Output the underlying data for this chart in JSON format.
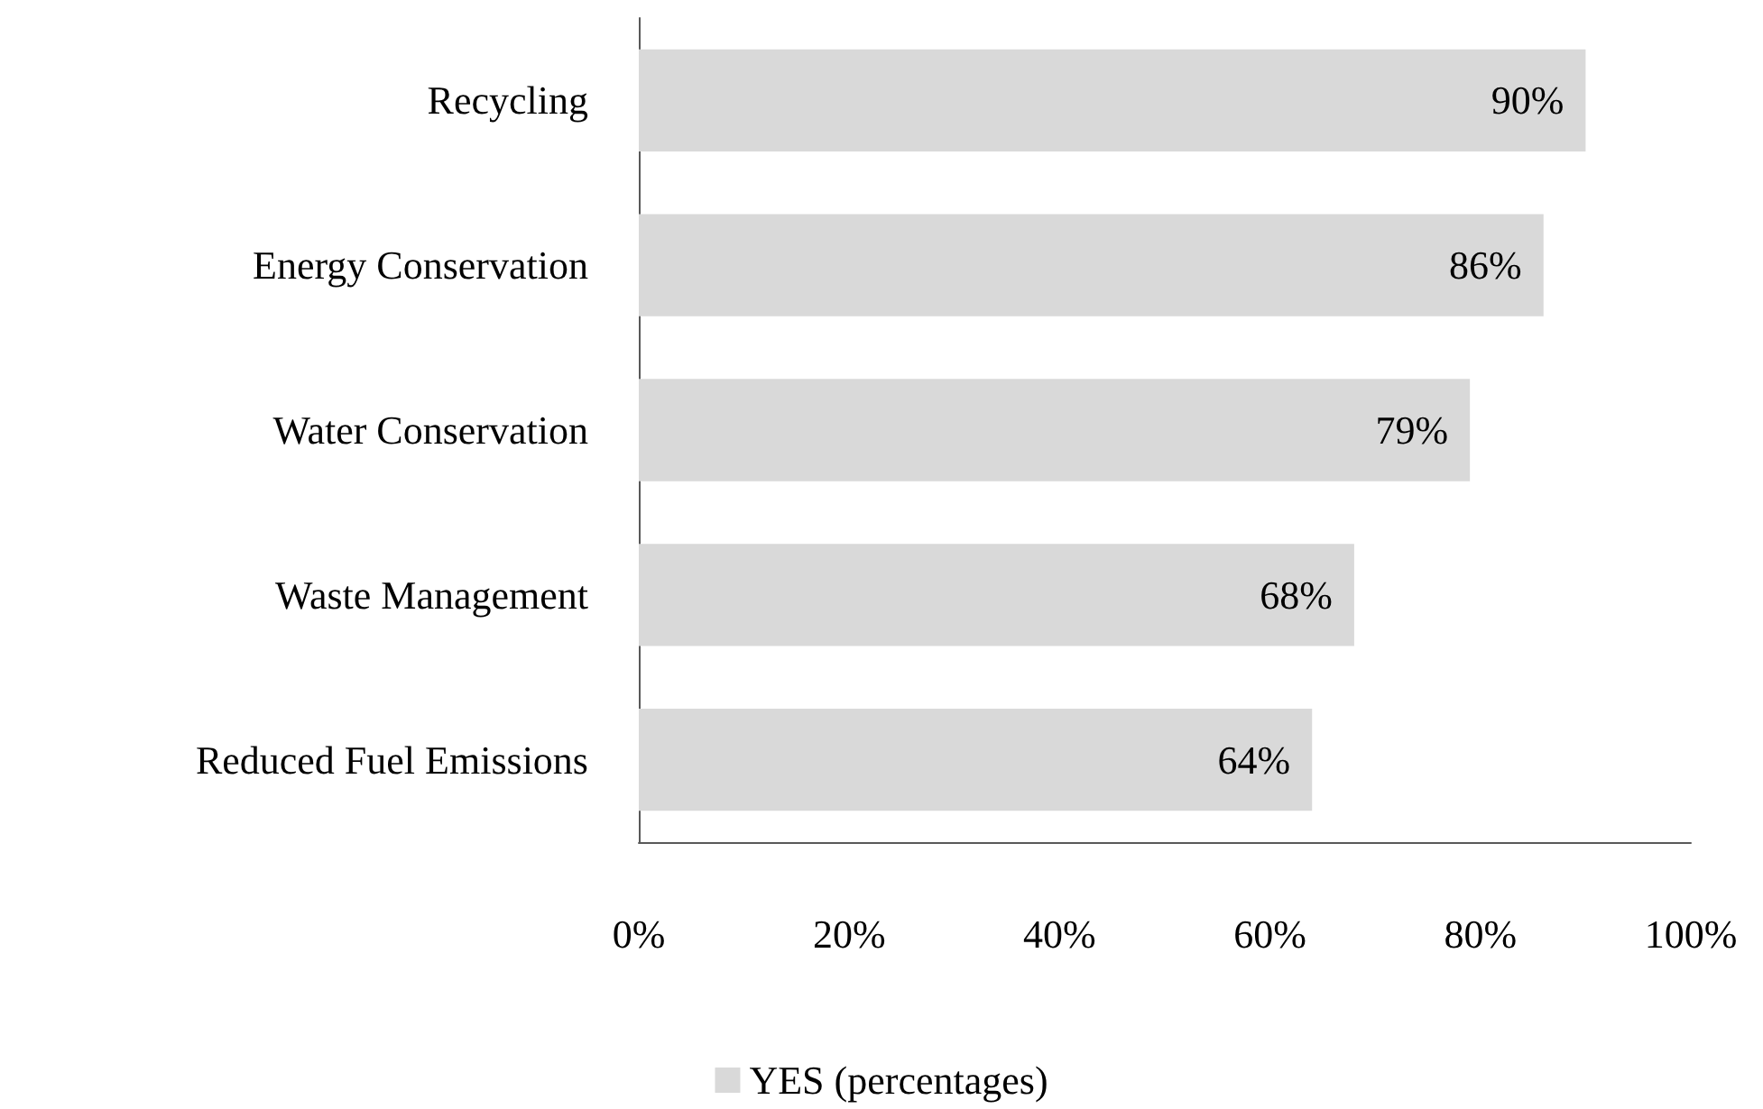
{
  "chart_data": {
    "type": "bar",
    "orientation": "horizontal",
    "categories": [
      "Recycling",
      "Energy Conservation",
      "Water Conservation",
      "Waste Management",
      "Reduced Fuel Emissions"
    ],
    "series": [
      {
        "name": "YES (percentages)",
        "color": "#d9d9d9",
        "values": [
          90,
          86,
          79,
          68,
          64
        ],
        "value_labels": [
          "90%",
          "86%",
          "79%",
          "68%",
          "64%"
        ]
      }
    ],
    "xlim": [
      0,
      100
    ],
    "xticks": [
      {
        "value": 0,
        "label": "0%"
      },
      {
        "value": 20,
        "label": "20%"
      },
      {
        "value": 40,
        "label": "40%"
      },
      {
        "value": 60,
        "label": "60%"
      },
      {
        "value": 80,
        "label": "80%"
      },
      {
        "value": 100,
        "label": "100%"
      }
    ],
    "grid": false,
    "legend": "bottom"
  }
}
